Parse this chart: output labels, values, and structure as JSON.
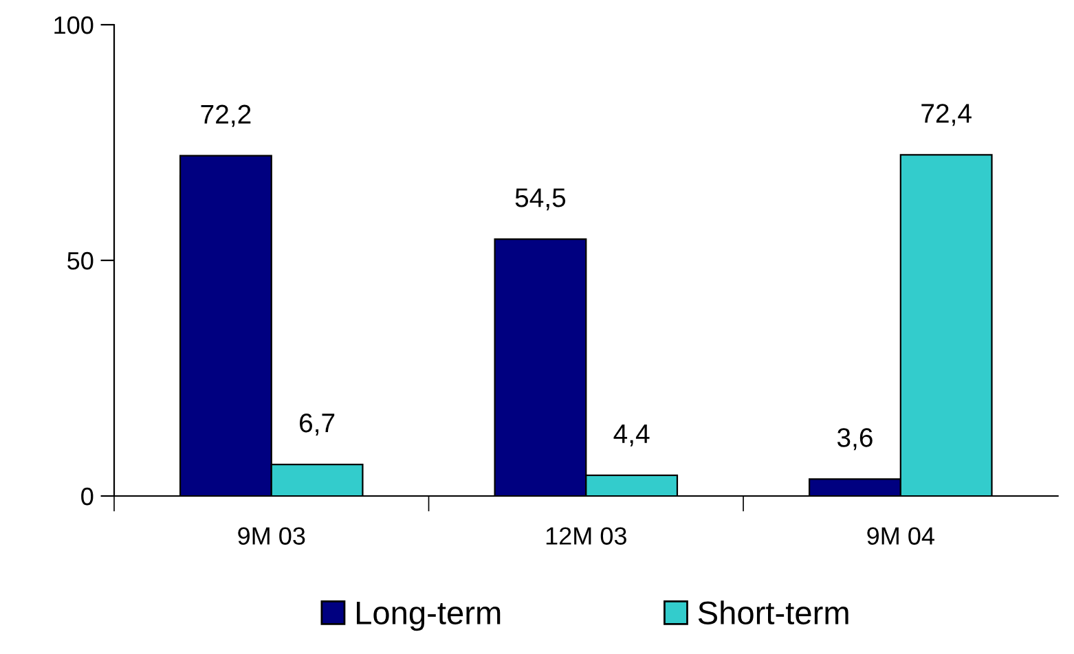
{
  "chart_data": {
    "type": "bar",
    "categories": [
      "9M 03",
      "12M 03",
      "9M 04"
    ],
    "series": [
      {
        "name": "Long-term",
        "color": "#000080",
        "values": [
          72.2,
          54.5,
          3.6
        ],
        "value_labels": [
          "72,2",
          "54,5",
          "3,6"
        ]
      },
      {
        "name": "Short-term",
        "color": "#33cccc",
        "values": [
          6.7,
          4.4,
          72.4
        ],
        "value_labels": [
          "6,7",
          "4,4",
          "72,4"
        ]
      }
    ],
    "ylim": [
      0,
      100
    ],
    "yticks": [
      0,
      50,
      100
    ],
    "grid": false,
    "legend": "bottom"
  }
}
